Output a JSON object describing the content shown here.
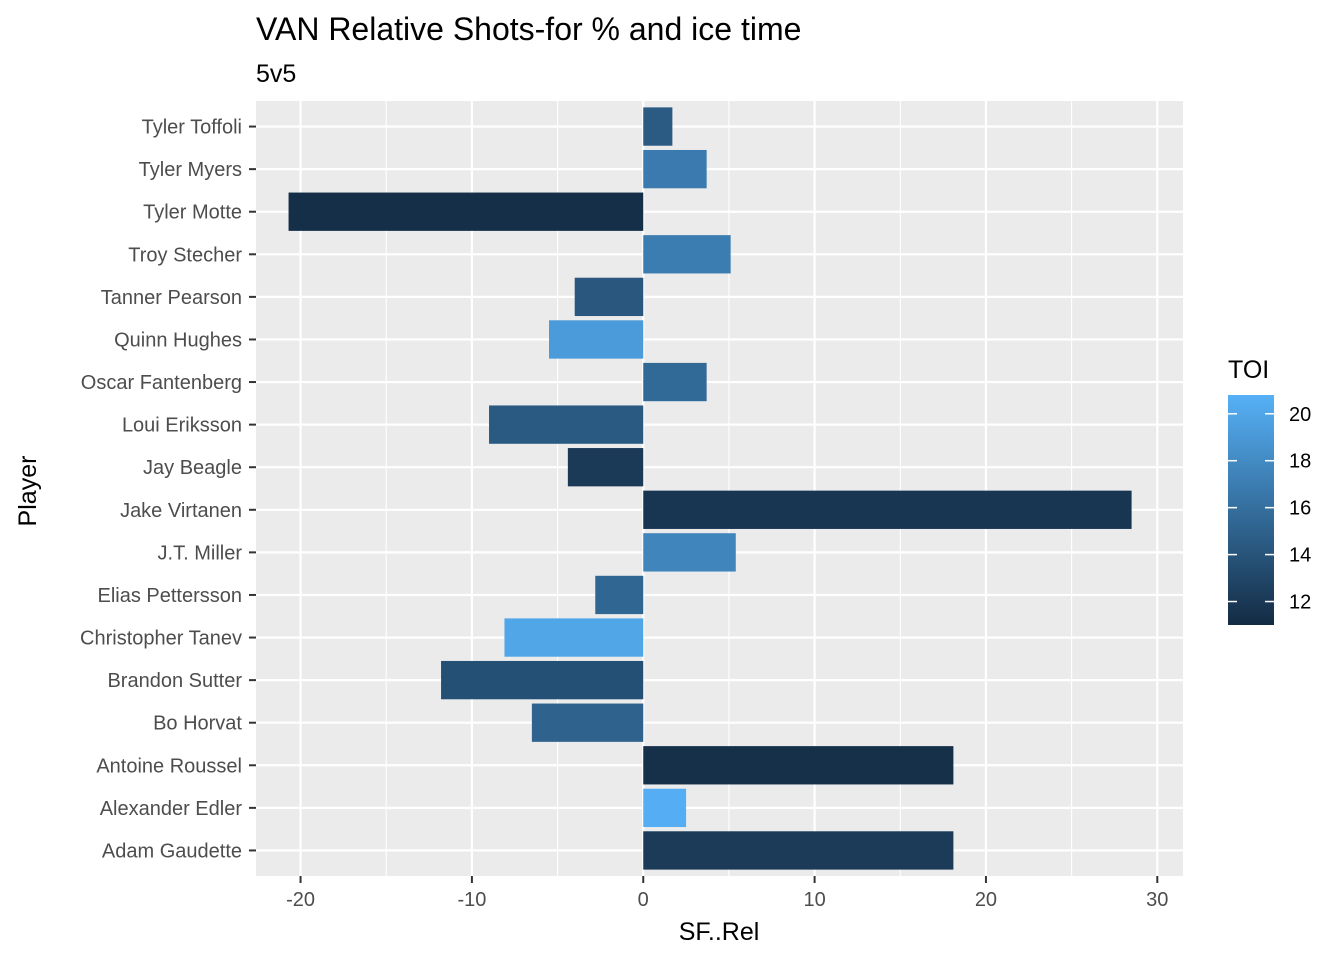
{
  "chart_data": {
    "type": "bar",
    "orientation": "horizontal",
    "title": "VAN Relative Shots-for % and ice time",
    "subtitle": "5v5",
    "xlabel": "SF..Rel",
    "ylabel": "Player",
    "xlim": [
      -22.6,
      31.5
    ],
    "x_ticks": [
      -20,
      -10,
      0,
      10,
      20,
      30
    ],
    "x_tick_labels": [
      "-20",
      "-10",
      "0",
      "10",
      "20",
      "30"
    ],
    "grid": true,
    "legend": {
      "title": "TOI",
      "position": "right",
      "type": "colorbar",
      "min": 11.0,
      "max": 20.8,
      "ticks": [
        12,
        14,
        16,
        18,
        20
      ],
      "tick_labels": [
        "12",
        "14",
        "16",
        "18",
        "20"
      ],
      "low_color": "#132B43",
      "high_color": "#56B1F7"
    },
    "categories": [
      "Tyler Toffoli",
      "Tyler Myers",
      "Tyler Motte",
      "Troy Stecher",
      "Tanner Pearson",
      "Quinn Hughes",
      "Oscar Fantenberg",
      "Loui Eriksson",
      "Jay Beagle",
      "Jake Virtanen",
      "J.T. Miller",
      "Elias Pettersson",
      "Christopher Tanev",
      "Brandon Sutter",
      "Bo Horvat",
      "Antoine Roussel",
      "Alexander Edler",
      "Adam Gaudette"
    ],
    "values": [
      1.7,
      3.7,
      -20.7,
      5.1,
      -4.0,
      -5.5,
      3.7,
      -9.0,
      -4.4,
      28.5,
      5.4,
      -2.8,
      -8.1,
      -11.8,
      -6.5,
      18.1,
      2.5,
      18.1
    ],
    "toi": [
      14.5,
      16.8,
      11.3,
      17.0,
      14.2,
      19.2,
      15.6,
      14.4,
      12.1,
      11.8,
      17.6,
      15.3,
      20.0,
      13.7,
      15.1,
      11.4,
      20.6,
      12.2
    ]
  }
}
